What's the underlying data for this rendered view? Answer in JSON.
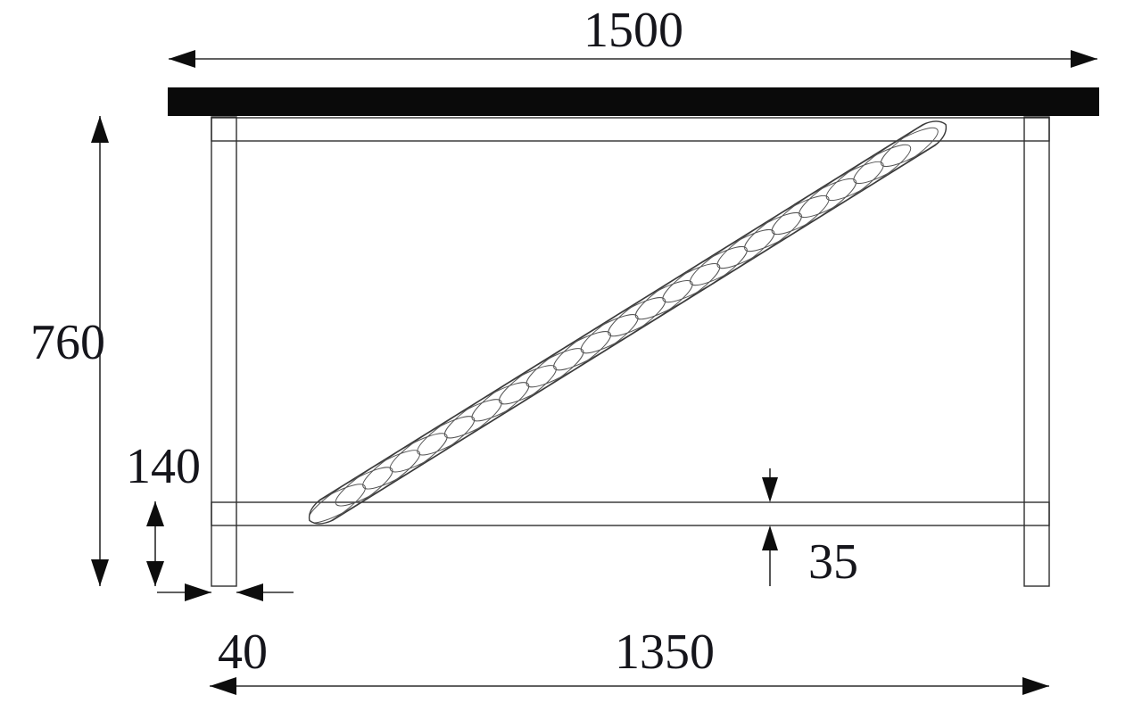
{
  "page": {
    "title": "Table frame technical drawing, side elevation with dimensions",
    "background_color": "#ffffff"
  },
  "drawing": {
    "style": {
      "outline_color": "#2f2f2f",
      "dimension_line_color": "#2b2b2b",
      "hatch_color": "#4a4a4a",
      "text_color": "#15151b",
      "tabletop_fill": "#0a0a0a"
    },
    "components": {
      "tabletop": "solid black table top slab",
      "left_leg": "hatched left leg",
      "right_leg": "hatched right leg",
      "top_rail": "hatched top rail under tabletop",
      "bottom_rail": "hatched lower rail",
      "diagonal_brace": "diagonal brace with elliptical grain hatching"
    },
    "dimensions": {
      "top_width": {
        "label": "1500",
        "meaning": "overall tabletop width"
      },
      "overall_height": {
        "label": "760",
        "meaning": "height from floor to underside of tabletop"
      },
      "rail_height": {
        "label": "140",
        "meaning": "floor to top of lower rail"
      },
      "leg_thickness": {
        "label": "40",
        "meaning": "leg thickness"
      },
      "rail_thickness": {
        "label": "35",
        "meaning": "lower rail thickness"
      },
      "bottom_span": {
        "label": "1350",
        "meaning": "span across legs at bottom"
      }
    }
  }
}
